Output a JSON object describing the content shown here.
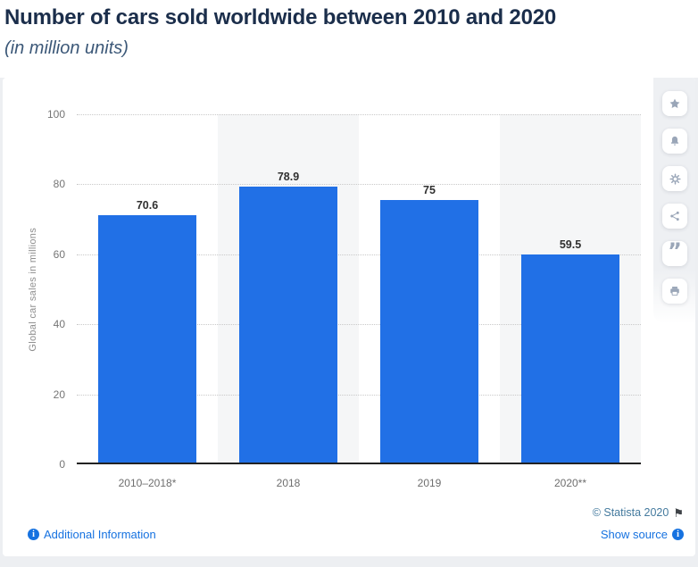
{
  "header": {
    "title": "Number of cars sold worldwide between 2010 and 2020",
    "subtitle": "(in million units)"
  },
  "toolbar": {
    "icons": [
      "star",
      "bell",
      "gear",
      "share",
      "quote",
      "printer"
    ]
  },
  "chart_data": {
    "type": "bar",
    "categories": [
      "2010–2018*",
      "2018",
      "2019",
      "2020**"
    ],
    "values": [
      70.6,
      78.9,
      75,
      59.5
    ],
    "value_labels": [
      "70.6",
      "78.9",
      "75",
      "59.5"
    ],
    "title": "Number of cars sold worldwide between 2010 and 2020",
    "subtitle": "(in million units)",
    "xlabel": "",
    "ylabel": "Global car sales in millions",
    "ylim": [
      0,
      100
    ],
    "yticks": [
      0,
      20,
      40,
      60,
      80,
      100
    ],
    "grid": "horizontal-dotted",
    "legend": "none",
    "bar_color": "#2170e6",
    "band_color": "#f5f6f7"
  },
  "footer": {
    "copyright": "© Statista 2020",
    "additional_information_label": "Additional Information",
    "show_source_label": "Show source",
    "link_color": "#1672e0"
  }
}
